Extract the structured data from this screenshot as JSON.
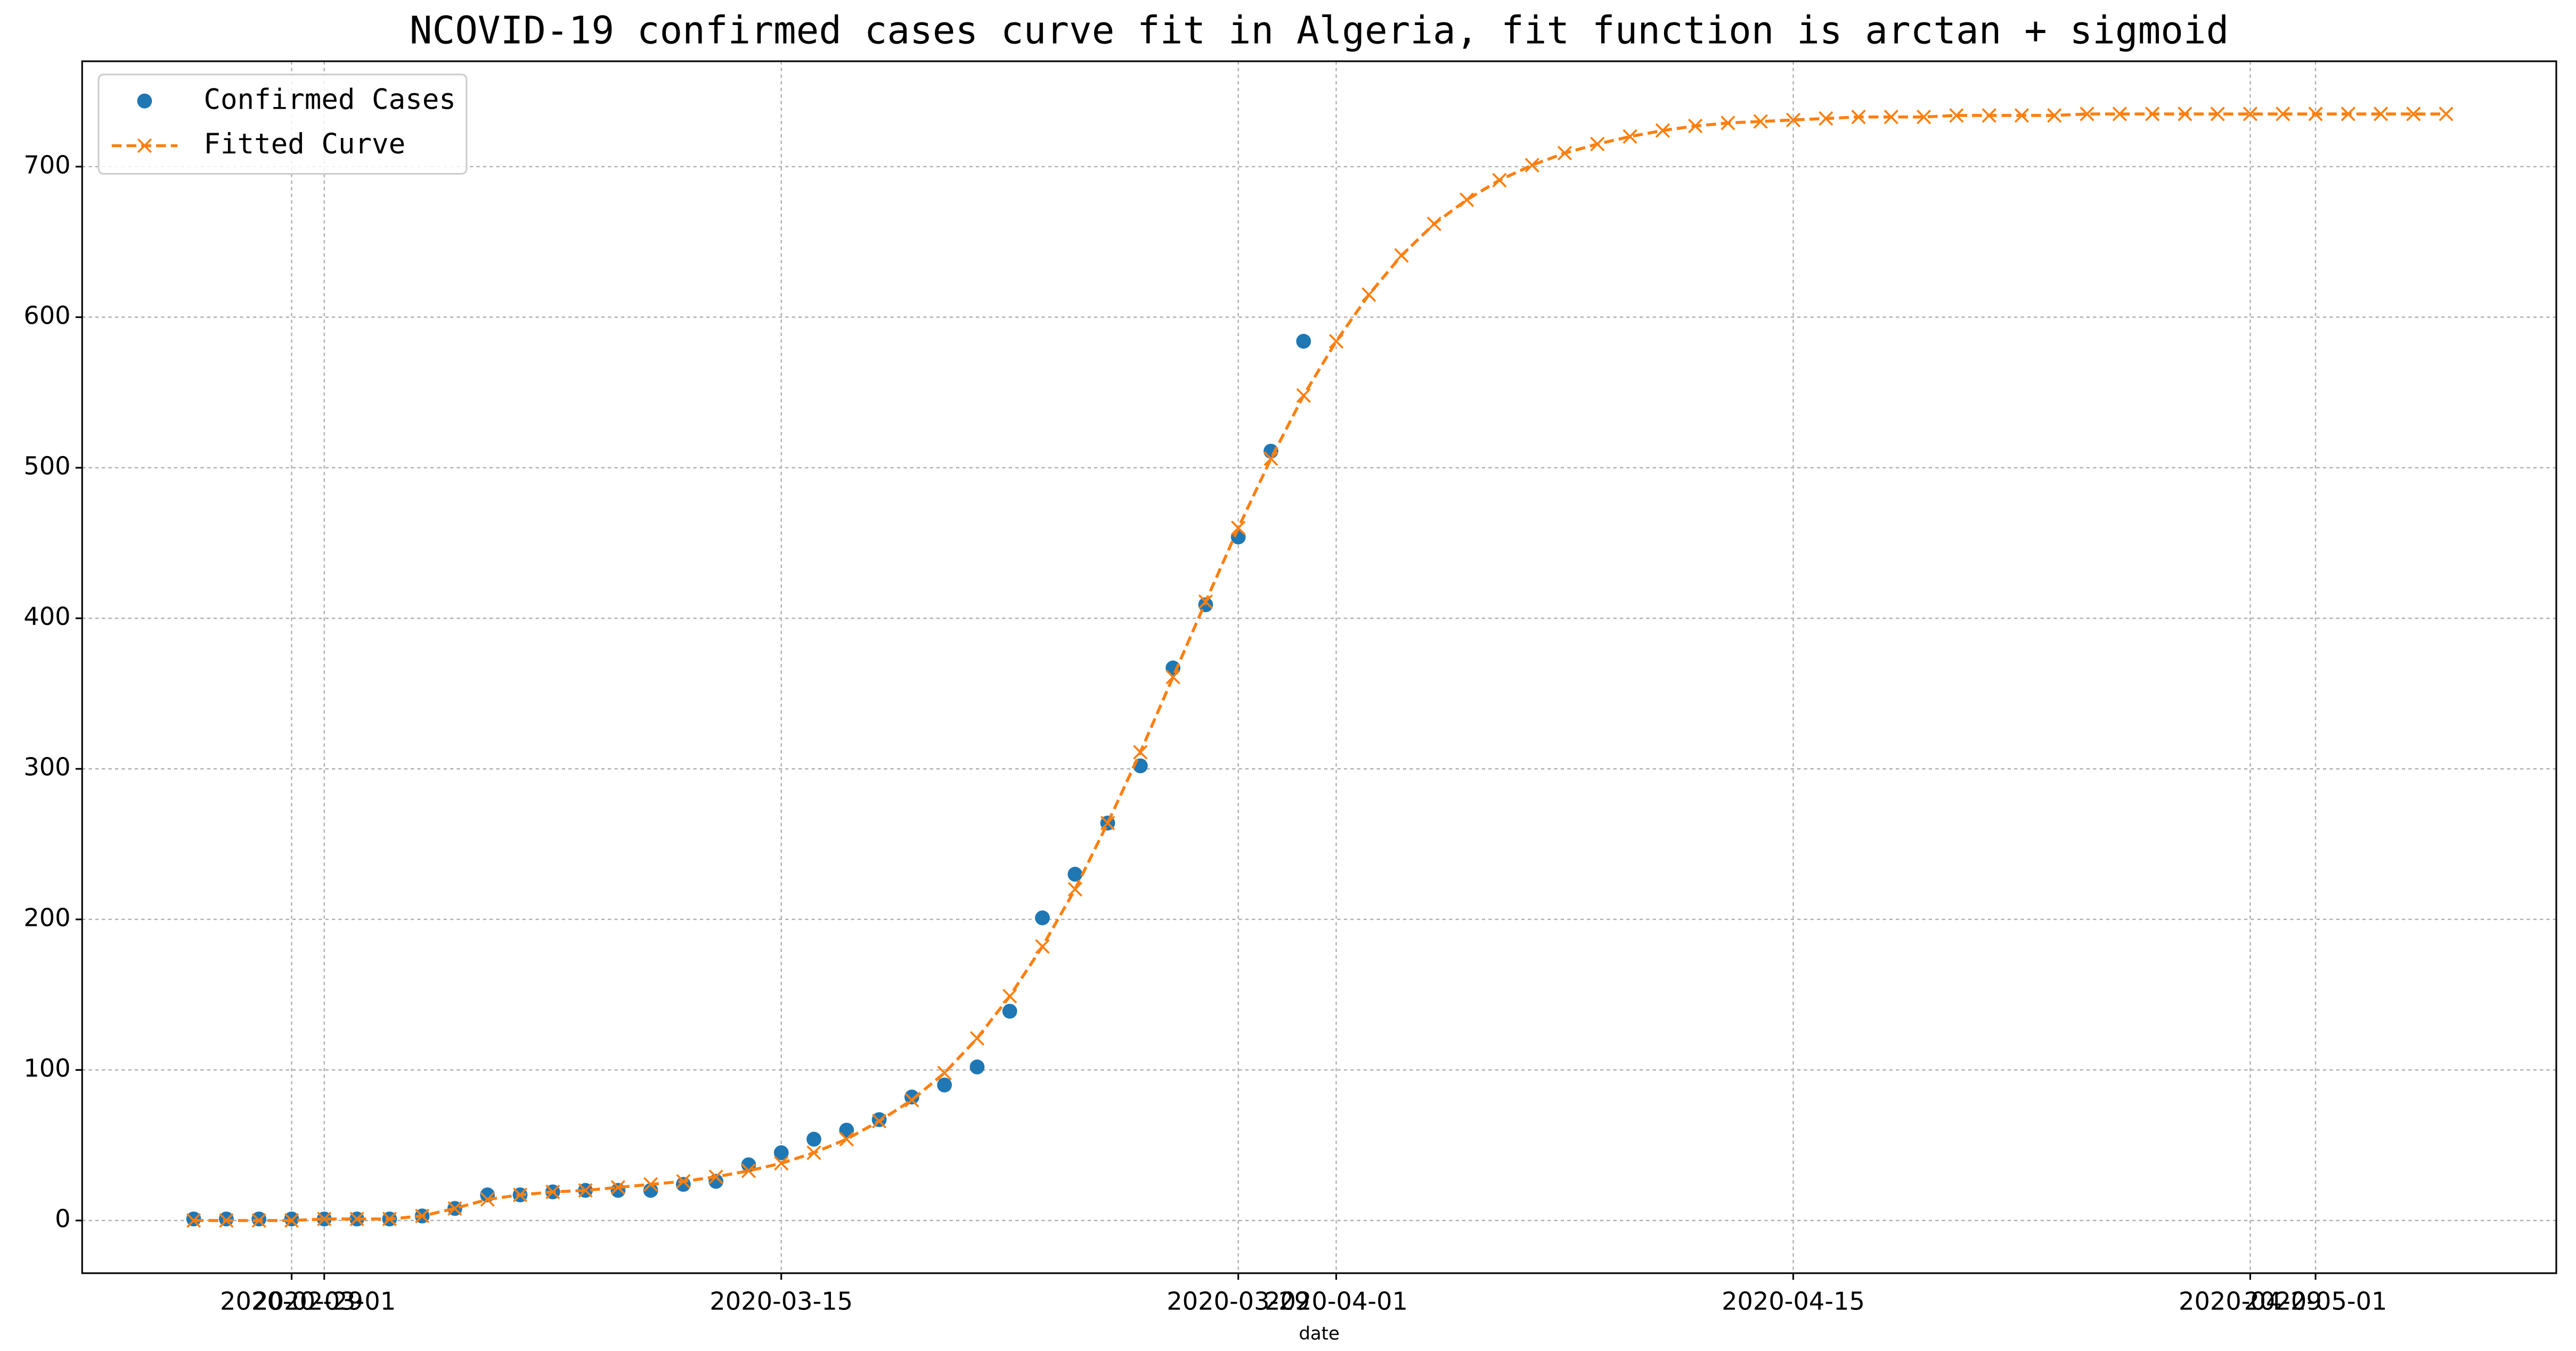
{
  "chart_data": {
    "type": "line",
    "title": "NCOVID-19 confirmed cases curve fit in Algeria, fit function is arctan + sigmoid",
    "x_label": "date",
    "series": [
      {
        "name": "Confirmed Cases",
        "color": "#1f77b4",
        "style": "points",
        "x": [
          "2020-02-26",
          "2020-02-27",
          "2020-02-28",
          "2020-02-29",
          "2020-03-01",
          "2020-03-02",
          "2020-03-03",
          "2020-03-04",
          "2020-03-05",
          "2020-03-06",
          "2020-03-07",
          "2020-03-08",
          "2020-03-09",
          "2020-03-10",
          "2020-03-11",
          "2020-03-12",
          "2020-03-13",
          "2020-03-14",
          "2020-03-15",
          "2020-03-16",
          "2020-03-17",
          "2020-03-18",
          "2020-03-19",
          "2020-03-20",
          "2020-03-21",
          "2020-03-22",
          "2020-03-23",
          "2020-03-24",
          "2020-03-25",
          "2020-03-26",
          "2020-03-27",
          "2020-03-28",
          "2020-03-29",
          "2020-03-30",
          "2020-03-31"
        ],
        "values": [
          1,
          1,
          1,
          1,
          1,
          1,
          1,
          3,
          8,
          17,
          17,
          19,
          20,
          20,
          20,
          24,
          26,
          37,
          45,
          54,
          60,
          67,
          82,
          90,
          102,
          139,
          201,
          230,
          264,
          302,
          367,
          409,
          454,
          511,
          584
        ]
      },
      {
        "name": "Fitted Curve",
        "color": "#ff7f0e",
        "style": "dashed-x",
        "x": [
          "2020-02-26",
          "2020-02-27",
          "2020-02-28",
          "2020-02-29",
          "2020-03-01",
          "2020-03-02",
          "2020-03-03",
          "2020-03-04",
          "2020-03-05",
          "2020-03-06",
          "2020-03-07",
          "2020-03-08",
          "2020-03-09",
          "2020-03-10",
          "2020-03-11",
          "2020-03-12",
          "2020-03-13",
          "2020-03-14",
          "2020-03-15",
          "2020-03-16",
          "2020-03-17",
          "2020-03-18",
          "2020-03-19",
          "2020-03-20",
          "2020-03-21",
          "2020-03-22",
          "2020-03-23",
          "2020-03-24",
          "2020-03-25",
          "2020-03-26",
          "2020-03-27",
          "2020-03-28",
          "2020-03-29",
          "2020-03-30",
          "2020-03-31",
          "2020-04-01",
          "2020-04-02",
          "2020-04-03",
          "2020-04-04",
          "2020-04-05",
          "2020-04-06",
          "2020-04-07",
          "2020-04-08",
          "2020-04-09",
          "2020-04-10",
          "2020-04-11",
          "2020-04-12",
          "2020-04-13",
          "2020-04-14",
          "2020-04-15",
          "2020-04-16",
          "2020-04-17",
          "2020-04-18",
          "2020-04-19",
          "2020-04-20",
          "2020-04-21",
          "2020-04-22",
          "2020-04-23",
          "2020-04-24",
          "2020-04-25",
          "2020-04-26",
          "2020-04-27",
          "2020-04-28",
          "2020-04-29",
          "2020-04-30",
          "2020-05-01",
          "2020-05-02",
          "2020-05-03",
          "2020-05-04",
          "2020-05-05"
        ],
        "values": [
          0,
          0,
          0,
          0,
          1,
          1,
          1,
          3,
          8,
          14,
          17,
          19,
          20,
          22,
          24,
          26,
          29,
          33,
          38,
          45,
          54,
          66,
          80,
          98,
          121,
          149,
          182,
          220,
          264,
          311,
          361,
          411,
          460,
          506,
          548,
          584,
          615,
          641,
          662,
          678,
          691,
          701,
          709,
          715,
          720,
          724,
          727,
          729,
          730,
          731,
          732,
          733,
          733,
          733,
          734,
          734,
          734,
          734,
          735,
          735,
          735,
          735,
          735,
          735,
          735,
          735,
          735,
          735,
          735,
          735
        ]
      }
    ],
    "xlim": [
      "2020-02-22T14:00:00Z",
      "2020-05-08T09:00:00Z"
    ],
    "xticks": [
      "2020-02-29",
      "2020-03-01",
      "2020-03-15",
      "2020-03-29",
      "2020-04-01",
      "2020-04-15",
      "2020-04-29",
      "2020-05-01"
    ],
    "ylim": [
      -35,
      770
    ],
    "yticks": [
      0,
      100,
      200,
      300,
      400,
      500,
      600,
      700
    ],
    "grid": true,
    "legend": "upper left"
  }
}
